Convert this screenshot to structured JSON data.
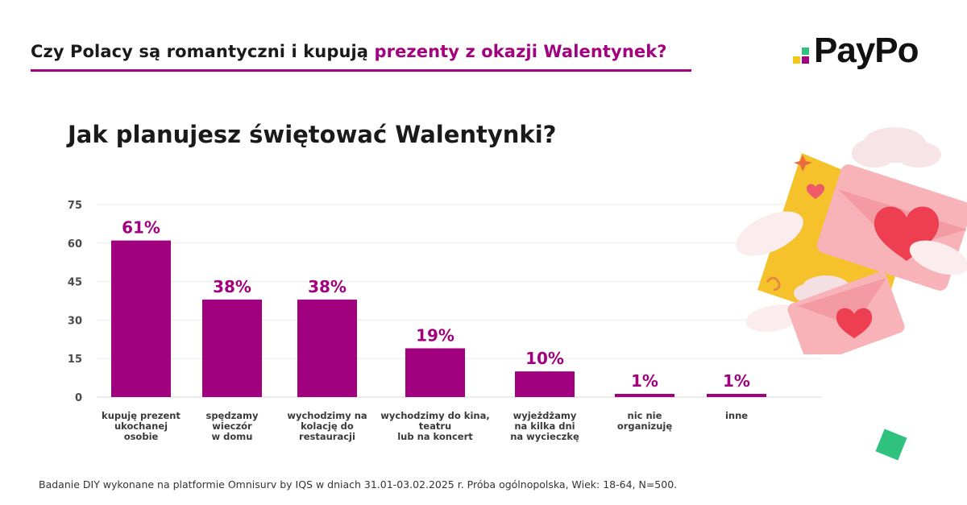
{
  "header": {
    "title_plain": "Czy Polacy są romantyczni i kupują",
    "title_accent": "prezenty z okazji Walentynek?"
  },
  "logo": {
    "text": "PayPo"
  },
  "question": "Jak planujesz świętować Walentynki?",
  "footnote": "Badanie DIY wykonane na platformie Omnisurv by IQS w dniach 31.01-03.02.2025 r. Próba ogólnopolska, Wiek: 18-64, N=500.",
  "colors": {
    "accent": "#a1007e",
    "bar": "#a1007e",
    "label": "#a1007e",
    "logo_green": "#2ec27e",
    "logo_yellow": "#f5c518",
    "logo_purple": "#a1007e"
  },
  "chart_data": {
    "type": "bar",
    "categories": [
      [
        "kupuję prezent",
        "ukochanej",
        "osobie"
      ],
      [
        "spędzamy",
        "wieczór",
        "w domu"
      ],
      [
        "wychodzimy na",
        "kolację do",
        "restauracji"
      ],
      [
        "wychodzimy do kina,",
        "teatru",
        "lub na koncert"
      ],
      [
        "wyjeżdżamy",
        "na kilka dni",
        "na wycieczkę"
      ],
      [
        "nic nie",
        "organizuję"
      ],
      [
        "inne"
      ]
    ],
    "values": [
      61,
      38,
      38,
      19,
      10,
      1,
      1
    ],
    "value_labels": [
      "61%",
      "38%",
      "38%",
      "19%",
      "10%",
      "1%",
      "1%"
    ],
    "yticks": [
      "0",
      "15",
      "30",
      "45",
      "60",
      "75"
    ],
    "ytick_values": [
      0,
      15,
      30,
      45,
      60,
      75
    ],
    "ylim": [
      0,
      75
    ],
    "grid": true
  }
}
